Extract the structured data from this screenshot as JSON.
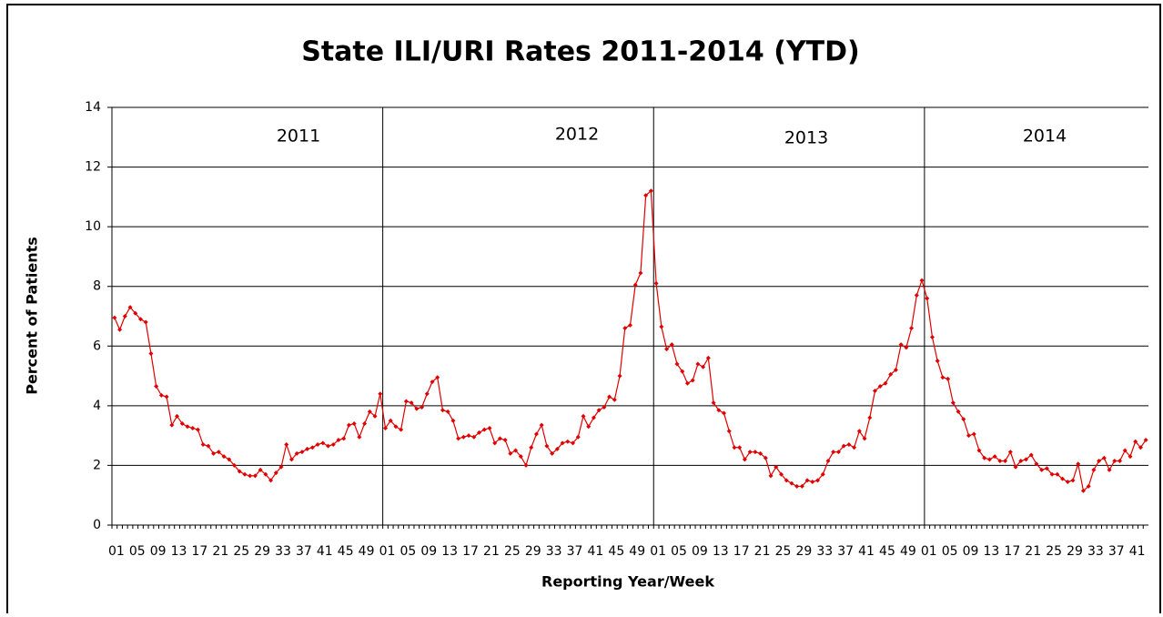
{
  "chart_data": {
    "type": "line",
    "title": "State ILI/URI Rates 2011-2014 (YTD)",
    "y_label": "Percent of Patients",
    "x_label": "Reporting Year/Week",
    "annotations": [
      "2011",
      "2012",
      "2013",
      "2014"
    ],
    "ylim": [
      0,
      14
    ],
    "yticks": [
      0,
      2,
      4,
      6,
      8,
      10,
      12,
      14
    ],
    "grid": true,
    "categories": [
      "01",
      null,
      null,
      null,
      "05",
      null,
      null,
      null,
      "09",
      null,
      null,
      null,
      "13",
      null,
      null,
      null,
      "17",
      null,
      null,
      null,
      "21",
      null,
      null,
      null,
      "25",
      null,
      null,
      null,
      "29",
      null,
      null,
      null,
      "33",
      null,
      null,
      null,
      "37",
      null,
      null,
      null,
      "41",
      null,
      null,
      null,
      "45",
      null,
      null,
      null,
      "49",
      null,
      null,
      null,
      "01",
      null,
      null,
      null,
      "05",
      null,
      null,
      null,
      "09",
      null,
      null,
      null,
      "13",
      null,
      null,
      null,
      "17",
      null,
      null,
      null,
      "21",
      null,
      null,
      null,
      "25",
      null,
      null,
      null,
      "29",
      null,
      null,
      null,
      "33",
      null,
      null,
      null,
      "37",
      null,
      null,
      null,
      "41",
      null,
      null,
      null,
      "45",
      null,
      null,
      null,
      "49",
      null,
      null,
      null,
      "01",
      null,
      null,
      null,
      "05",
      null,
      null,
      null,
      "09",
      null,
      null,
      null,
      "13",
      null,
      null,
      null,
      "17",
      null,
      null,
      null,
      "21",
      null,
      null,
      null,
      "25",
      null,
      null,
      null,
      "29",
      null,
      null,
      null,
      "33",
      null,
      null,
      null,
      "37",
      null,
      null,
      null,
      "41",
      null,
      null,
      null,
      "45",
      null,
      null,
      null,
      "49",
      null,
      null,
      null,
      "01",
      null,
      null,
      null,
      "05",
      null,
      null,
      null,
      "09",
      null,
      null,
      null,
      "13",
      null,
      null,
      null,
      "17",
      null,
      null,
      null,
      "21",
      null,
      null,
      null,
      "25",
      null,
      null,
      null,
      "29",
      null,
      null,
      null,
      "33",
      null,
      null,
      null,
      "37",
      null,
      null,
      null,
      "41",
      null,
      null
    ],
    "series": [
      {
        "name": "ILI/URI",
        "color": "#e00000",
        "values": [
          6.95,
          6.55,
          7.0,
          7.3,
          7.1,
          6.9,
          6.8,
          5.75,
          4.65,
          4.35,
          4.3,
          3.35,
          3.65,
          3.4,
          3.3,
          3.25,
          3.2,
          2.7,
          2.65,
          2.4,
          2.45,
          2.3,
          2.2,
          2.0,
          1.8,
          1.7,
          1.65,
          1.65,
          1.85,
          1.7,
          1.5,
          1.75,
          1.95,
          2.7,
          2.2,
          2.4,
          2.45,
          2.55,
          2.6,
          2.7,
          2.75,
          2.65,
          2.7,
          2.85,
          2.9,
          3.35,
          3.4,
          2.95,
          3.4,
          3.8,
          3.65,
          4.4,
          3.25,
          3.5,
          3.3,
          3.2,
          4.15,
          4.1,
          3.9,
          3.95,
          4.4,
          4.8,
          4.95,
          3.85,
          3.8,
          3.5,
          2.9,
          2.95,
          3.0,
          2.95,
          3.1,
          3.2,
          3.25,
          2.75,
          2.9,
          2.85,
          2.4,
          2.5,
          2.3,
          2.0,
          2.6,
          3.05,
          3.35,
          2.65,
          2.4,
          2.55,
          2.75,
          2.8,
          2.75,
          2.95,
          3.65,
          3.3,
          3.6,
          3.85,
          3.95,
          4.3,
          4.2,
          5.0,
          6.6,
          6.7,
          8.05,
          8.45,
          11.05,
          11.2,
          8.1,
          6.65,
          5.9,
          6.05,
          5.4,
          5.15,
          4.75,
          4.85,
          5.4,
          5.3,
          5.6,
          4.1,
          3.85,
          3.75,
          3.15,
          2.6,
          2.6,
          2.2,
          2.45,
          2.45,
          2.4,
          2.25,
          1.65,
          1.95,
          1.7,
          1.5,
          1.4,
          1.3,
          1.3,
          1.5,
          1.45,
          1.5,
          1.7,
          2.15,
          2.45,
          2.45,
          2.65,
          2.7,
          2.6,
          3.15,
          2.9,
          3.6,
          4.5,
          4.65,
          4.75,
          5.05,
          5.2,
          6.05,
          5.95,
          6.6,
          7.7,
          8.2,
          7.6,
          6.3,
          5.5,
          4.95,
          4.9,
          4.1,
          3.8,
          3.55,
          3.0,
          3.05,
          2.5,
          2.25,
          2.2,
          2.3,
          2.15,
          2.15,
          2.45,
          1.95,
          2.15,
          2.2,
          2.35,
          2.05,
          1.85,
          1.9,
          1.7,
          1.7,
          1.55,
          1.45,
          1.5,
          2.05,
          1.15,
          1.3,
          1.85,
          2.15,
          2.25,
          1.85,
          2.15,
          2.15,
          2.5,
          2.3,
          2.8,
          2.6,
          2.85
        ]
      }
    ]
  }
}
